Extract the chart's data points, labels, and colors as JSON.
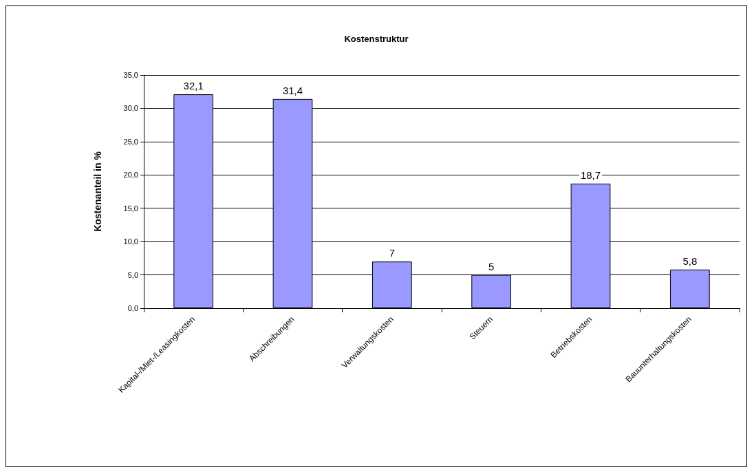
{
  "chart_data": {
    "type": "bar",
    "title": "Kostenstruktur",
    "ylabel": "Kostenanteil in %",
    "categories": [
      "Kapital-/Miet-/Leasingkosten",
      "Abschreibungen",
      "Verwaltungskosten",
      "Steuern",
      "Betriebskosten",
      "Bauunterhaltungskosten"
    ],
    "values": [
      32.1,
      31.4,
      7,
      5,
      18.7,
      5.8
    ],
    "value_labels": [
      "32,1",
      "31,4",
      "7",
      "5",
      "18,7",
      "5,8"
    ],
    "color": "#9999ff",
    "ylim": [
      0,
      35
    ],
    "yticks": [
      {
        "value": 0,
        "label": "0,0"
      },
      {
        "value": 5,
        "label": "5,0"
      },
      {
        "value": 10,
        "label": "10,0"
      },
      {
        "value": 15,
        "label": "15,0"
      },
      {
        "value": 20,
        "label": "20,0"
      },
      {
        "value": 25,
        "label": "25,0"
      },
      {
        "value": 30,
        "label": "30,0"
      },
      {
        "value": 35,
        "label": "35,0"
      }
    ],
    "grid": "y"
  }
}
